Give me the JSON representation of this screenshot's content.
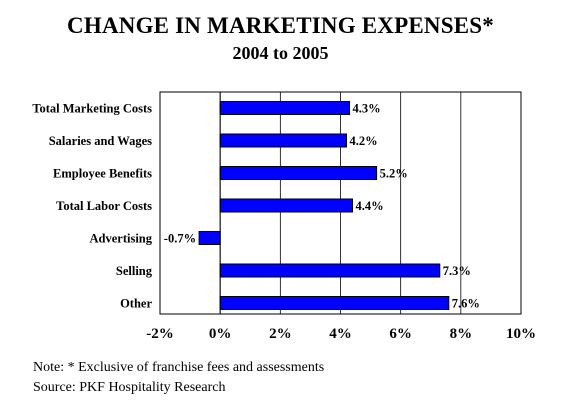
{
  "chart_data": {
    "type": "bar",
    "orientation": "horizontal",
    "title": "CHANGE IN MARKETING EXPENSES*",
    "subtitle": "2004 to 2005",
    "categories": [
      "Total Marketing Costs",
      "Salaries and Wages",
      "Employee Benefits",
      "Total Labor Costs",
      "Advertising",
      "Selling",
      "Other"
    ],
    "values": [
      4.3,
      4.2,
      5.2,
      4.4,
      -0.7,
      7.3,
      7.6
    ],
    "value_labels": [
      "4.3%",
      "4.2%",
      "5.2%",
      "4.4%",
      "-0.7%",
      "7.3%",
      "7.6%"
    ],
    "xlim": [
      -2,
      10
    ],
    "xticks": [
      -2,
      0,
      2,
      4,
      6,
      8,
      10
    ],
    "xtick_labels": [
      "-2%",
      "0%",
      "2%",
      "4%",
      "6%",
      "8%",
      "10%"
    ],
    "xlabel": "",
    "ylabel": "",
    "grid": "vertical",
    "legend": "none",
    "bar_color": "#0000ff",
    "bar_outline": "#000000"
  },
  "notes": [
    "Note: * Exclusive of franchise fees and assessments",
    "Source: PKF Hospitality Research"
  ]
}
